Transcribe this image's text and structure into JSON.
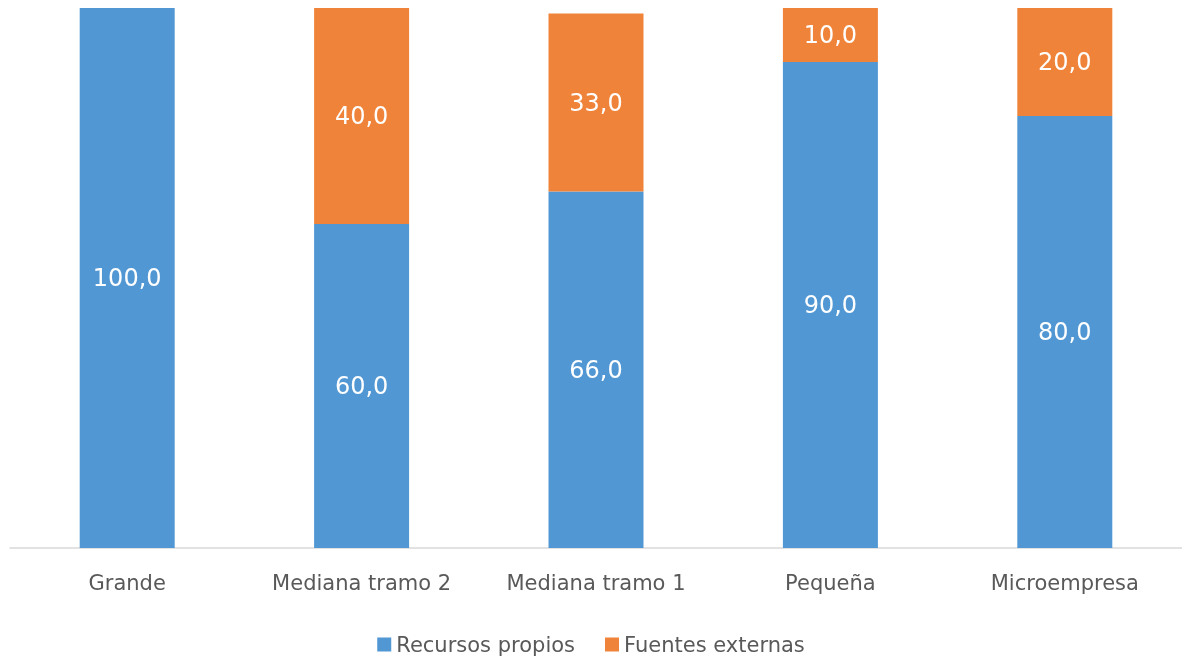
{
  "chart_data": {
    "type": "bar",
    "stacked": true,
    "categories": [
      "Grande",
      "Mediana tramo 2",
      "Mediana tramo 1",
      "Pequeña",
      "Microempresa"
    ],
    "series": [
      {
        "name": "Recursos propios",
        "color": "#5197d3",
        "values": [
          100,
          60,
          66,
          90,
          80
        ],
        "value_labels": [
          "100,0",
          "60,0",
          "66,0",
          "90,0",
          "80,0"
        ]
      },
      {
        "name": "Fuentes externas",
        "color": "#f0833a",
        "values": [
          null,
          40,
          33,
          10,
          20
        ],
        "value_labels": [
          null,
          "40,0",
          "33,0",
          "10,0",
          "20,0"
        ]
      }
    ],
    "ylim": [
      0,
      100
    ],
    "legend": "bottom"
  }
}
